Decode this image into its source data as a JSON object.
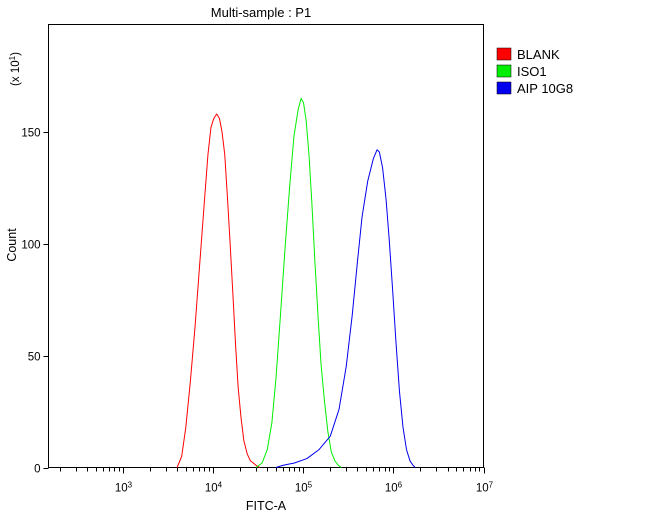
{
  "chart_data": {
    "type": "line",
    "title": "Multi-sample : P1",
    "xlabel": "FITC-A",
    "ylabel": "Count",
    "y_multiplier": {
      "prefix": "(x 10",
      "exponent": "1",
      "suffix": ")"
    },
    "x_scale": "log",
    "xlim": [
      150,
      10000000
    ],
    "ylim": [
      0,
      198
    ],
    "x_ticks": [
      {
        "value": 1000,
        "base": "10",
        "exponent": "3"
      },
      {
        "value": 10000,
        "base": "10",
        "exponent": "4"
      },
      {
        "value": 100000,
        "base": "10",
        "exponent": "5"
      },
      {
        "value": 1000000,
        "base": "10",
        "exponent": "6"
      },
      {
        "value": 10000000,
        "base": "10",
        "exponent": "7"
      }
    ],
    "y_ticks": [
      {
        "value": 0,
        "label": "0"
      },
      {
        "value": 50,
        "label": "50"
      },
      {
        "value": 100,
        "label": "100"
      },
      {
        "value": 150,
        "label": "150"
      }
    ],
    "legend_position": "top-right",
    "series": [
      {
        "name": "BLANK",
        "color": "#ff0000",
        "points": [
          [
            4000,
            0
          ],
          [
            4500,
            5
          ],
          [
            5000,
            18
          ],
          [
            5600,
            38
          ],
          [
            6300,
            62
          ],
          [
            7100,
            90
          ],
          [
            8000,
            118
          ],
          [
            8800,
            140
          ],
          [
            9500,
            152
          ],
          [
            10200,
            156
          ],
          [
            11000,
            158
          ],
          [
            11800,
            156
          ],
          [
            12600,
            150
          ],
          [
            13500,
            140
          ],
          [
            14500,
            120
          ],
          [
            15500,
            100
          ],
          [
            16600,
            78
          ],
          [
            17800,
            55
          ],
          [
            19000,
            36
          ],
          [
            20500,
            22
          ],
          [
            22000,
            12
          ],
          [
            24000,
            6
          ],
          [
            26000,
            3
          ],
          [
            28000,
            2
          ],
          [
            30000,
            1
          ],
          [
            33000,
            0
          ]
        ]
      },
      {
        "name": "ISO1",
        "color": "#00ee00",
        "points": [
          [
            30000,
            0
          ],
          [
            35000,
            2
          ],
          [
            40000,
            8
          ],
          [
            45000,
            20
          ],
          [
            50000,
            40
          ],
          [
            56000,
            68
          ],
          [
            63000,
            98
          ],
          [
            71000,
            126
          ],
          [
            79000,
            148
          ],
          [
            88000,
            160
          ],
          [
            95000,
            165
          ],
          [
            101000,
            163
          ],
          [
            108000,
            155
          ],
          [
            116000,
            140
          ],
          [
            125000,
            118
          ],
          [
            135000,
            92
          ],
          [
            146000,
            68
          ],
          [
            158000,
            46
          ],
          [
            172000,
            30
          ],
          [
            188000,
            16
          ],
          [
            205000,
            7
          ],
          [
            225000,
            3
          ],
          [
            245000,
            1
          ],
          [
            265000,
            0
          ]
        ]
      },
      {
        "name": "AIP 10G8",
        "color": "#0000ee",
        "points": [
          [
            50000,
            0
          ],
          [
            60000,
            1
          ],
          [
            80000,
            2
          ],
          [
            110000,
            4
          ],
          [
            150000,
            8
          ],
          [
            200000,
            14
          ],
          [
            250000,
            26
          ],
          [
            300000,
            45
          ],
          [
            350000,
            68
          ],
          [
            400000,
            92
          ],
          [
            450000,
            112
          ],
          [
            520000,
            128
          ],
          [
            600000,
            138
          ],
          [
            660000,
            142
          ],
          [
            700000,
            141
          ],
          [
            760000,
            134
          ],
          [
            830000,
            120
          ],
          [
            900000,
            102
          ],
          [
            980000,
            80
          ],
          [
            1070000,
            56
          ],
          [
            1170000,
            34
          ],
          [
            1280000,
            18
          ],
          [
            1400000,
            8
          ],
          [
            1530000,
            3
          ],
          [
            1650000,
            1
          ],
          [
            1750000,
            0
          ]
        ]
      }
    ]
  }
}
